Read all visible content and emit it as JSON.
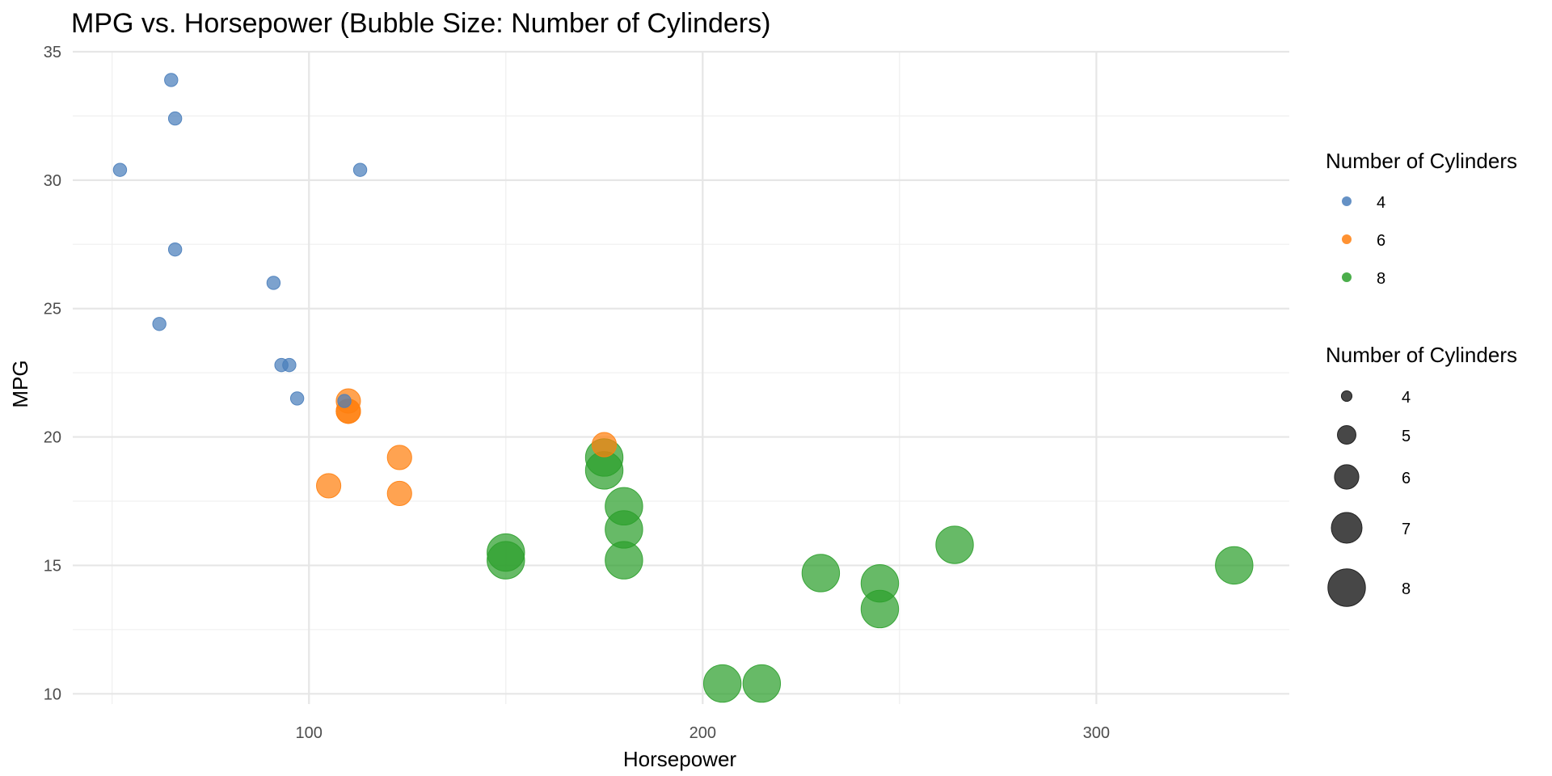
{
  "chart_data": {
    "type": "scatter",
    "title": "MPG vs. Horsepower (Bubble Size: Number of Cylinders)",
    "xlabel": "Horsepower",
    "ylabel": "MPG",
    "xlim": [
      40,
      349
    ],
    "ylim": [
      9.6,
      35
    ],
    "x_ticks": [
      100,
      200,
      300
    ],
    "x_minor_ticks": [
      50,
      150,
      250
    ],
    "y_ticks": [
      10,
      15,
      20,
      25,
      30,
      35
    ],
    "y_minor_ticks": [
      12.5,
      17.5,
      22.5,
      27.5,
      32.5
    ],
    "grid": true,
    "legend_position": "right",
    "size_by": "Number of Cylinders",
    "color_by": "Number of Cylinders",
    "series": [
      {
        "name": "4",
        "cyl": 4,
        "color": "#4A7EBB",
        "points": [
          {
            "x": 93,
            "y": 22.8
          },
          {
            "x": 62,
            "y": 24.4
          },
          {
            "x": 95,
            "y": 22.8
          },
          {
            "x": 66,
            "y": 32.4
          },
          {
            "x": 52,
            "y": 30.4
          },
          {
            "x": 65,
            "y": 33.9
          },
          {
            "x": 97,
            "y": 21.5
          },
          {
            "x": 66,
            "y": 27.3
          },
          {
            "x": 91,
            "y": 26.0
          },
          {
            "x": 113,
            "y": 30.4
          },
          {
            "x": 109,
            "y": 21.4
          }
        ]
      },
      {
        "name": "6",
        "cyl": 6,
        "color": "#FF7F0E",
        "points": [
          {
            "x": 110,
            "y": 21.0
          },
          {
            "x": 110,
            "y": 21.0
          },
          {
            "x": 110,
            "y": 21.4
          },
          {
            "x": 105,
            "y": 18.1
          },
          {
            "x": 123,
            "y": 19.2
          },
          {
            "x": 123,
            "y": 17.8
          },
          {
            "x": 175,
            "y": 19.7
          }
        ]
      },
      {
        "name": "8",
        "cyl": 8,
        "color": "#2CA02C",
        "points": [
          {
            "x": 175,
            "y": 18.7
          },
          {
            "x": 245,
            "y": 14.3
          },
          {
            "x": 180,
            "y": 16.4
          },
          {
            "x": 180,
            "y": 17.3
          },
          {
            "x": 180,
            "y": 15.2
          },
          {
            "x": 205,
            "y": 10.4
          },
          {
            "x": 215,
            "y": 10.4
          },
          {
            "x": 230,
            "y": 14.7
          },
          {
            "x": 150,
            "y": 15.5
          },
          {
            "x": 150,
            "y": 15.2
          },
          {
            "x": 245,
            "y": 13.3
          },
          {
            "x": 175,
            "y": 19.2
          },
          {
            "x": 264,
            "y": 15.8
          },
          {
            "x": 335,
            "y": 15.0
          }
        ]
      }
    ],
    "legend_color": {
      "title": "Number of Cylinders",
      "items": [
        {
          "label": "4",
          "color": "#4A7EBB"
        },
        {
          "label": "6",
          "color": "#FF7F0E"
        },
        {
          "label": "8",
          "color": "#2CA02C"
        }
      ]
    },
    "legend_size": {
      "title": "Number of Cylinders",
      "items": [
        {
          "label": "4",
          "value": 4
        },
        {
          "label": "5",
          "value": 5
        },
        {
          "label": "6",
          "value": 6
        },
        {
          "label": "7",
          "value": 7
        },
        {
          "label": "8",
          "value": 8
        }
      ],
      "color": "#333333"
    }
  }
}
